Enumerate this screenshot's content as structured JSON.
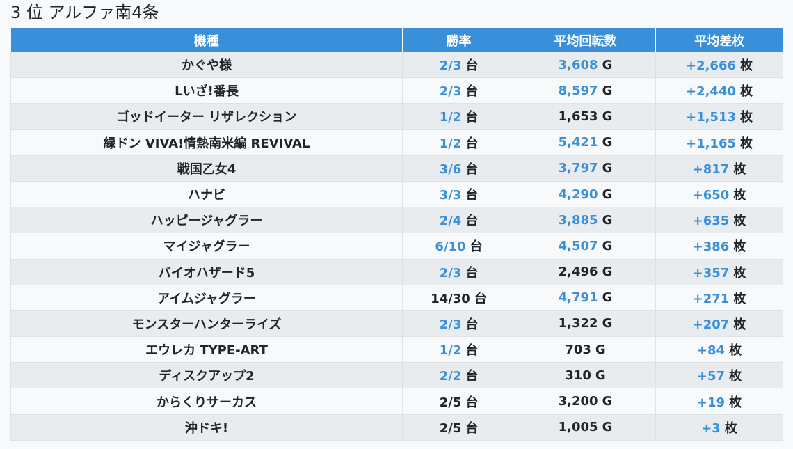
{
  "title": "3 位 アルファ南4条",
  "colors": {
    "header_bg": "#3a8fd9",
    "highlight": "#3a8fd9",
    "row_odd": "#e9ecef",
    "row_even": "#f8f9fa"
  },
  "table": {
    "headers": [
      "機種",
      "勝率",
      "平均回転数",
      "平均差枚"
    ],
    "units": {
      "win": "台",
      "spin": "G",
      "diff": "枚"
    },
    "rows": [
      {
        "name": "かぐや様",
        "win": "2/3",
        "win_hl": true,
        "spin": "3,608",
        "spin_hl": true,
        "diff": "+2,666",
        "diff_hl": true
      },
      {
        "name": "Lいざ!番長",
        "win": "2/3",
        "win_hl": true,
        "spin": "8,597",
        "spin_hl": true,
        "diff": "+2,440",
        "diff_hl": true
      },
      {
        "name": "ゴッドイーター リザレクション",
        "win": "1/2",
        "win_hl": true,
        "spin": "1,653",
        "spin_hl": false,
        "diff": "+1,513",
        "diff_hl": true
      },
      {
        "name": "緑ドン VIVA!情熱南米編 REVIVAL",
        "win": "1/2",
        "win_hl": true,
        "spin": "5,421",
        "spin_hl": true,
        "diff": "+1,165",
        "diff_hl": true
      },
      {
        "name": "戦国乙女4",
        "win": "3/6",
        "win_hl": true,
        "spin": "3,797",
        "spin_hl": true,
        "diff": "+817",
        "diff_hl": true
      },
      {
        "name": "ハナビ",
        "win": "3/3",
        "win_hl": true,
        "spin": "4,290",
        "spin_hl": true,
        "diff": "+650",
        "diff_hl": true
      },
      {
        "name": "ハッピージャグラー",
        "win": "2/4",
        "win_hl": true,
        "spin": "3,885",
        "spin_hl": true,
        "diff": "+635",
        "diff_hl": true
      },
      {
        "name": "マイジャグラー",
        "win": "6/10",
        "win_hl": true,
        "spin": "4,507",
        "spin_hl": true,
        "diff": "+386",
        "diff_hl": true
      },
      {
        "name": "バイオハザード5",
        "win": "2/3",
        "win_hl": true,
        "spin": "2,496",
        "spin_hl": false,
        "diff": "+357",
        "diff_hl": true
      },
      {
        "name": "アイムジャグラー",
        "win": "14/30",
        "win_hl": false,
        "spin": "4,791",
        "spin_hl": true,
        "diff": "+271",
        "diff_hl": true
      },
      {
        "name": "モンスターハンターライズ",
        "win": "2/3",
        "win_hl": true,
        "spin": "1,322",
        "spin_hl": false,
        "diff": "+207",
        "diff_hl": true
      },
      {
        "name": "エウレカ TYPE-ART",
        "win": "1/2",
        "win_hl": true,
        "spin": "703",
        "spin_hl": false,
        "diff": "+84",
        "diff_hl": true
      },
      {
        "name": "ディスクアップ2",
        "win": "2/2",
        "win_hl": true,
        "spin": "310",
        "spin_hl": false,
        "diff": "+57",
        "diff_hl": true
      },
      {
        "name": "からくりサーカス",
        "win": "2/5",
        "win_hl": false,
        "spin": "3,200",
        "spin_hl": false,
        "diff": "+19",
        "diff_hl": true
      },
      {
        "name": "沖ドキ!",
        "win": "2/5",
        "win_hl": false,
        "spin": "1,005",
        "spin_hl": false,
        "diff": "+3",
        "diff_hl": true
      }
    ]
  }
}
